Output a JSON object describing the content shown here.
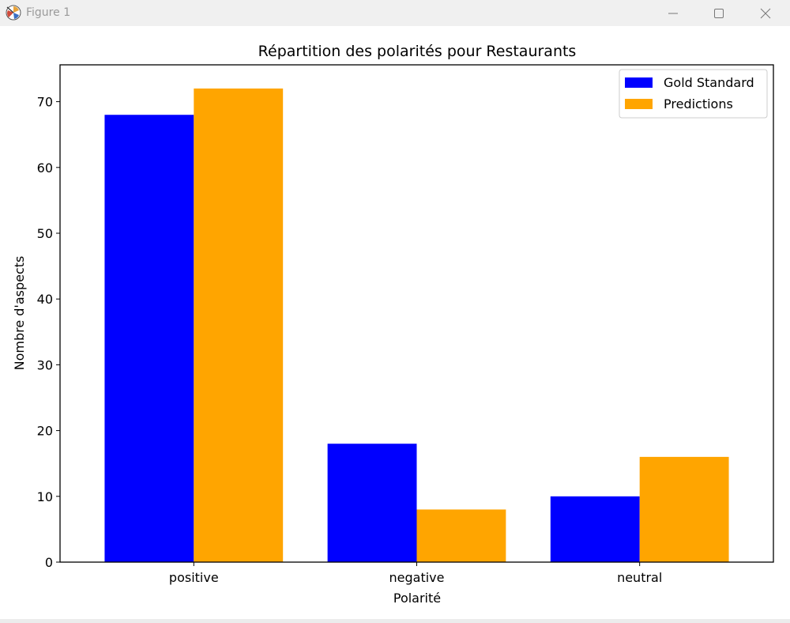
{
  "window": {
    "title": "Figure 1"
  },
  "chart_data": {
    "type": "bar",
    "title": "Répartition des polarités pour Restaurants",
    "xlabel": "Polarité",
    "ylabel": "Nombre d'aspects",
    "categories": [
      "positive",
      "negative",
      "neutral"
    ],
    "series": [
      {
        "name": "Gold Standard",
        "values": [
          68,
          18,
          10
        ],
        "color": "#0000ff"
      },
      {
        "name": "Predictions",
        "values": [
          72,
          8,
          16
        ],
        "color": "#ffa500"
      }
    ],
    "ylim": [
      0,
      75.6
    ],
    "yticks": [
      "0",
      "10",
      "20",
      "30",
      "40",
      "50",
      "60",
      "70"
    ],
    "legend": "upper right",
    "grid": false
  }
}
